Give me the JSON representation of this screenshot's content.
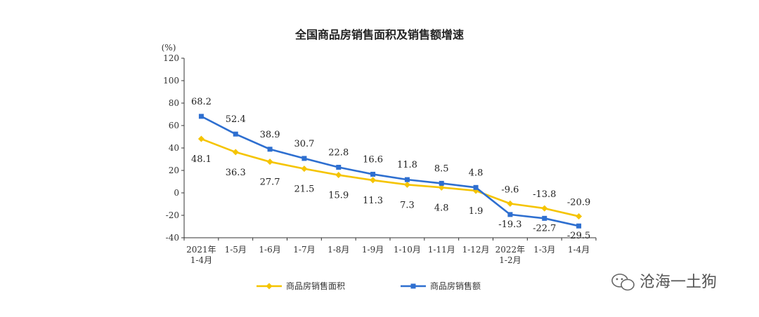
{
  "chart_data": {
    "type": "line",
    "title": "全国商品房销售面积及销售额增速",
    "ylabel": "(%)",
    "xlabel": "",
    "ylim": [
      -40,
      120
    ],
    "yticks": [
      -40,
      -20,
      0,
      20,
      40,
      60,
      80,
      100,
      120
    ],
    "grid": false,
    "legend_position": "bottom",
    "categories": [
      [
        "2021年",
        "1-4月"
      ],
      [
        "1-5月"
      ],
      [
        "1-6月"
      ],
      [
        "1-7月"
      ],
      [
        "1-8月"
      ],
      [
        "1-9月"
      ],
      [
        "1-10月"
      ],
      [
        "1-11月"
      ],
      [
        "1-12月"
      ],
      [
        "2022年",
        "1-2月"
      ],
      [
        "1-3月"
      ],
      [
        "1-4月"
      ]
    ],
    "series": [
      {
        "name": "商品房销售面积",
        "color": "#f5c400",
        "marker": "diamond",
        "values": [
          48.1,
          36.3,
          27.7,
          21.5,
          15.9,
          11.3,
          7.3,
          4.8,
          1.9,
          -9.6,
          -13.8,
          -20.9
        ],
        "labels": [
          "48.1",
          "36.3",
          "27.7",
          "21.5",
          "15.9",
          "11.3",
          "7.3",
          "4.8",
          "1.9",
          "-9.6",
          "-13.8",
          "-20.9"
        ]
      },
      {
        "name": "商品房销售额",
        "color": "#2e6fd0",
        "marker": "square",
        "values": [
          68.2,
          52.4,
          38.9,
          30.7,
          22.8,
          16.6,
          11.8,
          8.5,
          4.8,
          -19.3,
          -22.7,
          -29.5
        ],
        "labels": [
          "68.2",
          "52.4",
          "38.9",
          "30.7",
          "22.8",
          "16.6",
          "11.8",
          "8.5",
          "4.8",
          "-19.3",
          "-22.7",
          "-29.5"
        ]
      }
    ]
  },
  "watermark": {
    "text": "沧海一土狗",
    "icon": "wechat-icon"
  }
}
